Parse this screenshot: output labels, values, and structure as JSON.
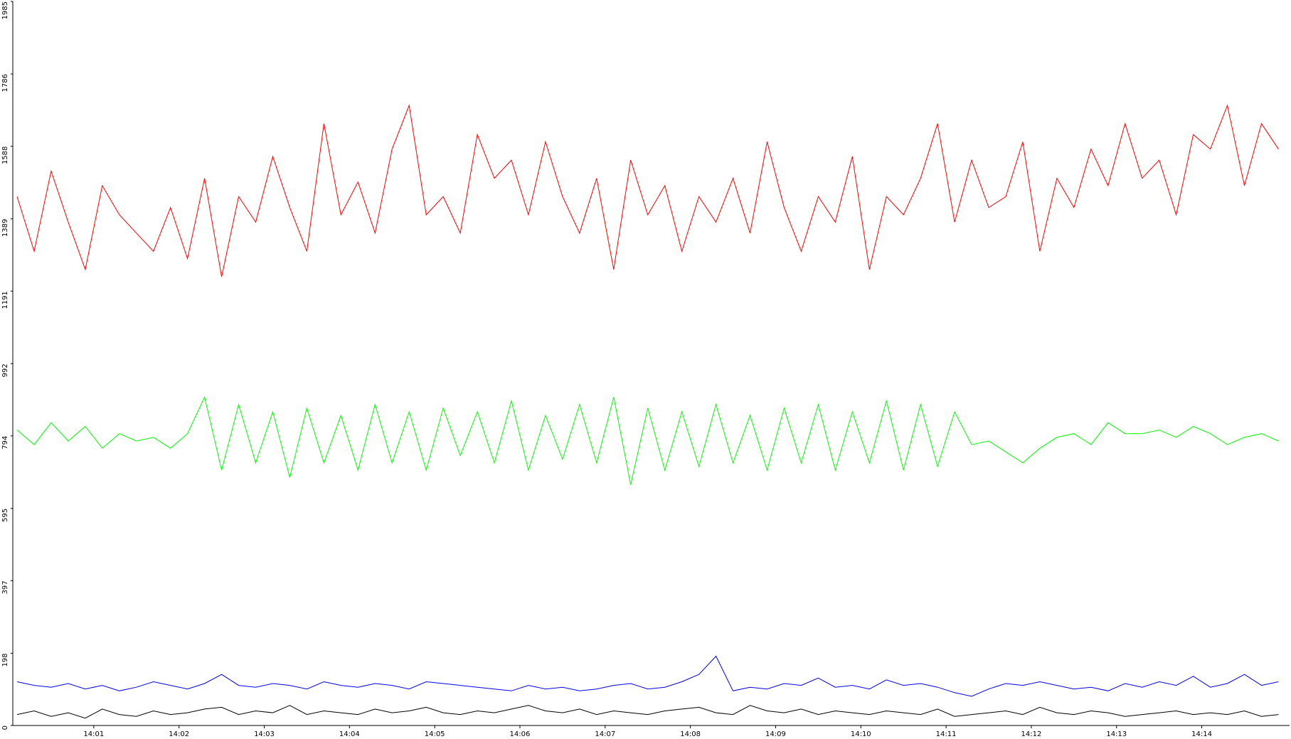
{
  "chart_data": {
    "type": "line",
    "x": [
      0.1,
      0.3,
      0.5,
      0.7,
      0.9,
      1.1,
      1.3,
      1.5,
      1.7,
      1.9,
      2.1,
      2.3,
      2.5,
      2.7,
      2.9,
      3.1,
      3.3,
      3.5,
      3.7,
      3.9,
      4.1,
      4.3,
      4.5,
      4.7,
      4.9,
      5.1,
      5.3,
      5.5,
      5.7,
      5.9,
      6.1,
      6.3,
      6.5,
      6.7,
      6.9,
      7.1,
      7.3,
      7.5,
      7.7,
      7.9,
      8.1,
      8.3,
      8.5,
      8.7,
      8.9,
      9.1,
      9.3,
      9.5,
      9.7,
      9.9,
      10.1,
      10.3,
      10.5,
      10.7,
      10.9,
      11.1,
      11.3,
      11.5,
      11.7,
      11.9,
      12.1,
      12.3,
      12.5,
      12.7,
      12.9,
      13.1,
      13.3,
      13.5,
      13.7,
      13.9,
      14.1,
      14.3,
      14.5,
      14.7,
      14.9
    ],
    "series": [
      {
        "color": "#ff0000",
        "values": [
          1450,
          1300,
          1520,
          1380,
          1250,
          1480,
          1400,
          1350,
          1300,
          1420,
          1280,
          1500,
          1230,
          1450,
          1380,
          1560,
          1420,
          1300,
          1650,
          1400,
          1490,
          1350,
          1580,
          1700,
          1400,
          1450,
          1350,
          1620,
          1500,
          1550,
          1400,
          1600,
          1450,
          1350,
          1500,
          1250,
          1550,
          1400,
          1480,
          1300,
          1450,
          1380,
          1500,
          1350,
          1600,
          1420,
          1300,
          1450,
          1380,
          1560,
          1250,
          1450,
          1400,
          1500,
          1650,
          1380,
          1550,
          1420,
          1450,
          1600,
          1300,
          1500,
          1420,
          1580,
          1480,
          1650,
          1500,
          1550,
          1400,
          1620,
          1580,
          1700,
          1480,
          1650,
          1580
        ]
      },
      {
        "color": "#00ff00",
        "values": [
          810,
          770,
          830,
          780,
          820,
          760,
          800,
          780,
          790,
          760,
          800,
          900,
          700,
          880,
          720,
          860,
          680,
          870,
          720,
          850,
          700,
          880,
          720,
          860,
          700,
          870,
          740,
          860,
          720,
          890,
          700,
          850,
          730,
          880,
          720,
          900,
          660,
          870,
          700,
          860,
          710,
          880,
          720,
          850,
          700,
          870,
          720,
          880,
          700,
          860,
          720,
          890,
          700,
          880,
          710,
          860,
          770,
          780,
          750,
          720,
          760,
          790,
          800,
          770,
          830,
          800,
          800,
          810,
          790,
          820,
          800,
          770,
          790,
          800,
          780
        ]
      },
      {
        "color": "#0000ff",
        "values": [
          120,
          110,
          105,
          115,
          100,
          110,
          95,
          105,
          120,
          110,
          100,
          115,
          140,
          110,
          105,
          115,
          110,
          100,
          120,
          110,
          105,
          115,
          110,
          100,
          120,
          115,
          110,
          105,
          100,
          95,
          110,
          100,
          105,
          95,
          100,
          110,
          115,
          100,
          105,
          120,
          140,
          190,
          95,
          105,
          100,
          115,
          110,
          130,
          105,
          110,
          100,
          125,
          110,
          115,
          105,
          90,
          80,
          100,
          115,
          110,
          120,
          110,
          100,
          105,
          95,
          115,
          105,
          120,
          110,
          135,
          105,
          115,
          140,
          110,
          120
        ]
      },
      {
        "color": "#000000",
        "values": [
          30,
          40,
          25,
          35,
          20,
          45,
          30,
          25,
          40,
          30,
          35,
          45,
          50,
          30,
          40,
          35,
          55,
          30,
          40,
          35,
          30,
          45,
          35,
          40,
          50,
          35,
          30,
          40,
          35,
          45,
          55,
          40,
          35,
          45,
          30,
          40,
          35,
          30,
          40,
          45,
          50,
          35,
          30,
          55,
          40,
          35,
          45,
          30,
          40,
          35,
          30,
          40,
          35,
          30,
          45,
          25,
          30,
          35,
          40,
          30,
          50,
          35,
          30,
          40,
          35,
          25,
          30,
          35,
          40,
          30,
          35,
          30,
          40,
          25,
          30
        ]
      }
    ],
    "xlim": [
      0.05,
      15.03
    ],
    "xticks": [
      {
        "value": 1,
        "label": "14:01"
      },
      {
        "value": 2,
        "label": "14:02"
      },
      {
        "value": 3,
        "label": "14:03"
      },
      {
        "value": 4,
        "label": "14:04"
      },
      {
        "value": 5,
        "label": "14:05"
      },
      {
        "value": 6,
        "label": "14:06"
      },
      {
        "value": 7,
        "label": "14:07"
      },
      {
        "value": 8,
        "label": "14:08"
      },
      {
        "value": 9,
        "label": "14:09"
      },
      {
        "value": 10,
        "label": "14:10"
      },
      {
        "value": 11,
        "label": "14:11"
      },
      {
        "value": 12,
        "label": "14:12"
      },
      {
        "value": 13,
        "label": "14:13"
      },
      {
        "value": 14,
        "label": "14:14"
      }
    ],
    "ylim": [
      0,
      1985
    ],
    "yticks": [
      0,
      198,
      397,
      595,
      794,
      992,
      1191,
      1389,
      1588,
      1786,
      1985
    ]
  }
}
